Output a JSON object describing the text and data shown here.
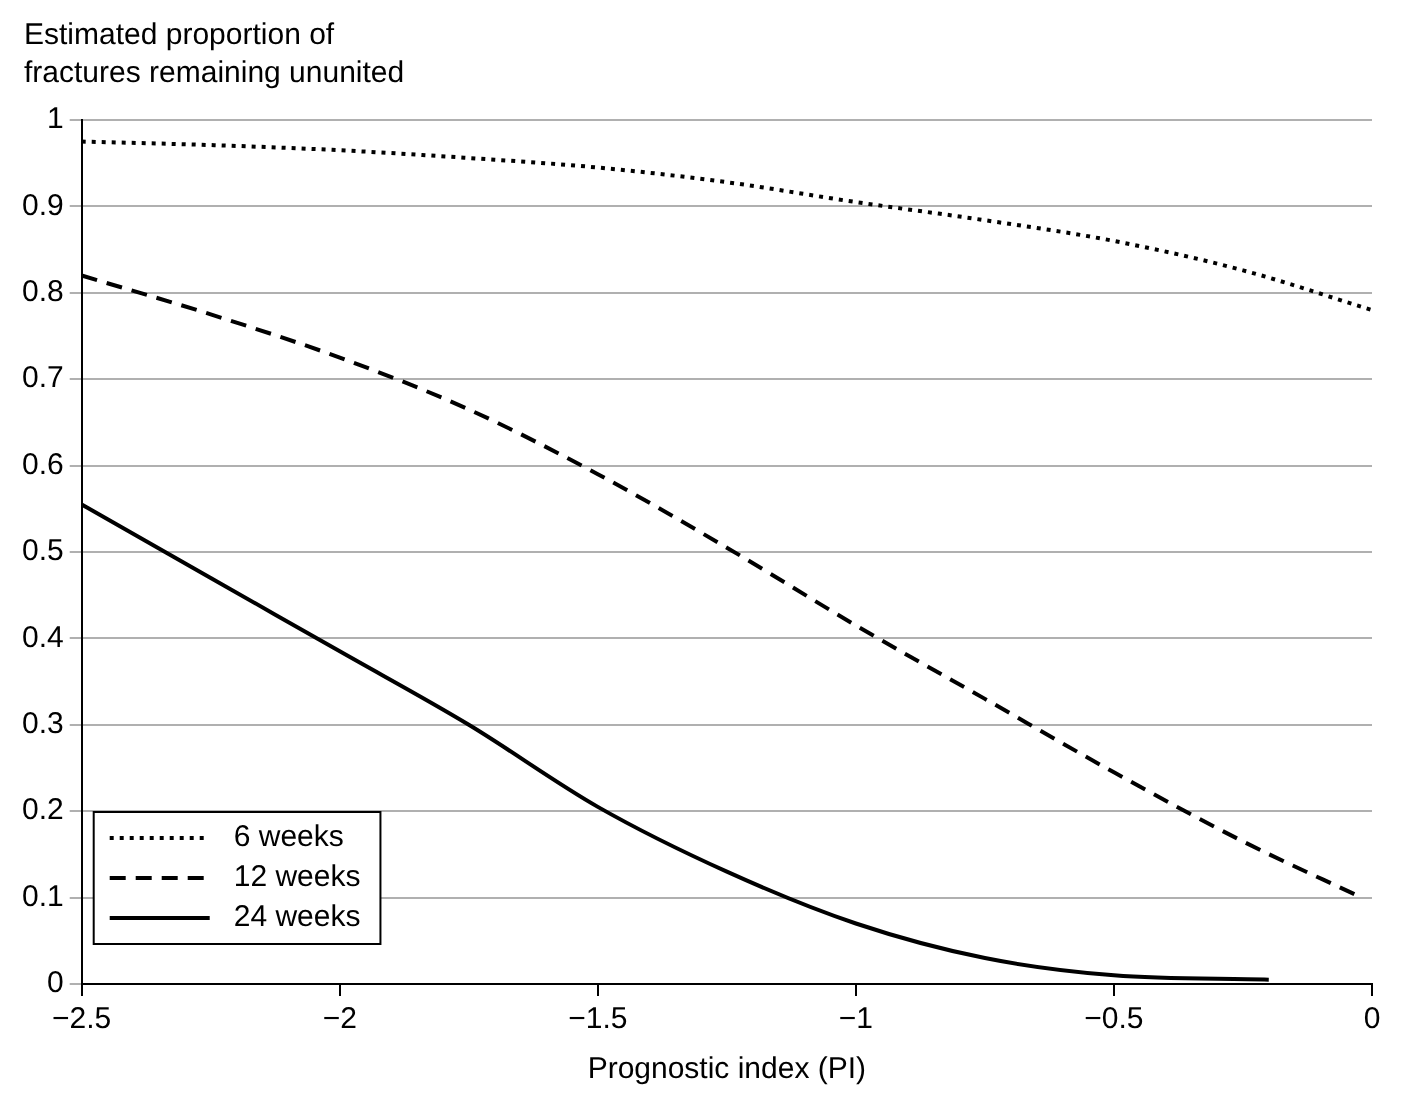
{
  "chart_data": {
    "type": "line",
    "ylabel": "Estimated proportion of fractures remaining ununited",
    "xlabel": "Prognostic index (PI)",
    "xlim": [
      -2.5,
      0
    ],
    "ylim": [
      0,
      1
    ],
    "xticks": [
      {
        "value": -2.5,
        "label": "−2.5"
      },
      {
        "value": -2,
        "label": "−2"
      },
      {
        "value": -1.5,
        "label": "−1.5"
      },
      {
        "value": -1,
        "label": "−1"
      },
      {
        "value": -0.5,
        "label": "−0.5"
      },
      0
    ],
    "yticks": [
      0,
      0.1,
      0.2,
      0.3,
      0.4,
      0.5,
      0.6,
      0.7,
      0.8,
      0.9,
      1
    ],
    "grid": "y",
    "legend": "bottom left",
    "marker": "none",
    "series": [
      {
        "name": "6 weeks",
        "color": "#000000",
        "line_style": "dotted",
        "x": [
          -2.5,
          -2.25,
          -2,
          -1.75,
          -1.5,
          -1.25,
          -1,
          -0.75,
          -0.5,
          -0.25,
          0
        ],
        "values": [
          0.975,
          0.971,
          0.965,
          0.956,
          0.945,
          0.928,
          0.905,
          0.884,
          0.86,
          0.826,
          0.78
        ]
      },
      {
        "name": "12 weeks",
        "color": "#000000",
        "line_style": "dashed",
        "x": [
          -2.5,
          -2.25,
          -2,
          -1.75,
          -1.5,
          -1.25,
          -1,
          -0.75,
          -0.5,
          -0.25,
          -0.02
        ],
        "values": [
          0.82,
          0.775,
          0.725,
          0.665,
          0.59,
          0.505,
          0.415,
          0.33,
          0.245,
          0.165,
          0.1
        ]
      },
      {
        "name": "24 weeks",
        "color": "#000000",
        "line_style": "solid",
        "x": [
          -2.5,
          -2.25,
          -2,
          -1.75,
          -1.5,
          -1.25,
          -1,
          -0.75,
          -0.5,
          -0.2
        ],
        "values": [
          0.555,
          0.47,
          0.385,
          0.3,
          0.205,
          0.13,
          0.07,
          0.03,
          0.01,
          0.005
        ]
      }
    ]
  }
}
